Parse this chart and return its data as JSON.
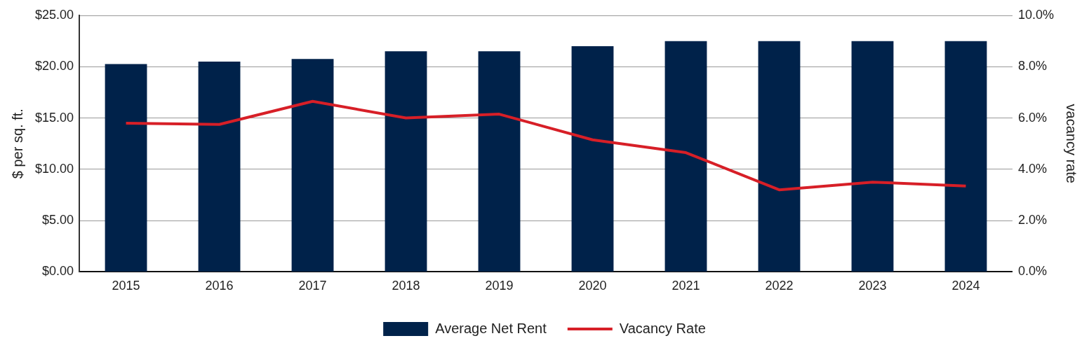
{
  "chart_data": {
    "type": "bar",
    "ylabel": "$ per sq. ft.",
    "y2label": "vacancy rate",
    "categories": [
      "2015",
      "2016",
      "2017",
      "2018",
      "2019",
      "2020",
      "2021",
      "2022",
      "2023",
      "2024"
    ],
    "series": [
      {
        "name": "Average Net Rent",
        "color": "#00224a",
        "values": [
          20.25,
          20.5,
          20.75,
          21.5,
          21.5,
          22,
          22.5,
          22.5,
          22.5,
          22.5
        ]
      },
      {
        "name": "Vacancy Rate",
        "type": "line",
        "axis": "y2",
        "color": "#d71f27",
        "values": [
          5.8,
          5.75,
          6.65,
          6.0,
          6.15,
          5.15,
          4.65,
          3.2,
          3.5,
          3.35
        ]
      }
    ],
    "ylim": [
      0,
      25
    ],
    "yticks": [
      {
        "value": 0,
        "label": "$0.00"
      },
      {
        "value": 5,
        "label": "$5.00"
      },
      {
        "value": 10,
        "label": "$10.00"
      },
      {
        "value": 15,
        "label": "$15.00"
      },
      {
        "value": 20,
        "label": "$20.00"
      },
      {
        "value": 25,
        "label": "$25.00"
      }
    ],
    "y2lim": [
      0,
      10
    ],
    "y2ticks": [
      {
        "value": 0,
        "label": "0.0%"
      },
      {
        "value": 2,
        "label": "2.0%"
      },
      {
        "value": 4,
        "label": "4.0%"
      },
      {
        "value": 6,
        "label": "6.0%"
      },
      {
        "value": 8,
        "label": "8.0%"
      },
      {
        "value": 10,
        "label": "10.0%"
      }
    ],
    "grid": "y",
    "legend": "bottom",
    "marker": "none",
    "line_style": "solid"
  }
}
